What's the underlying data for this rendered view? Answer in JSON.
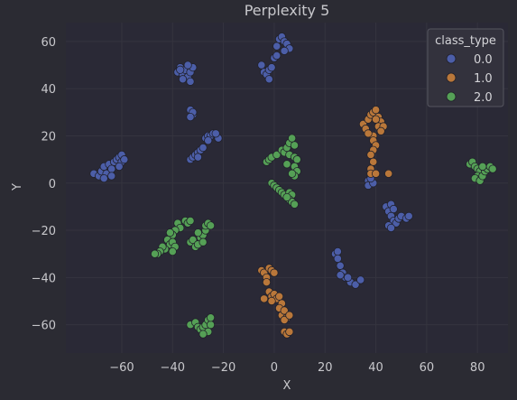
{
  "chart_data": {
    "type": "scatter",
    "title": "Perplexity 5",
    "xlabel": "X",
    "ylabel": "Y",
    "xlim": [
      -82,
      92
    ],
    "ylim": [
      -72,
      68
    ],
    "xticks": [
      -60,
      -40,
      -20,
      0,
      20,
      40,
      60,
      80
    ],
    "yticks": [
      -60,
      -40,
      -20,
      0,
      20,
      40,
      60
    ],
    "grid": true,
    "legend": {
      "title": "class_type",
      "placement": "top-right",
      "entries": [
        {
          "label": "0.0",
          "color": "#4c5ea8"
        },
        {
          "label": "1.0",
          "color": "#b9773a"
        },
        {
          "label": "2.0",
          "color": "#55a056"
        }
      ]
    },
    "series": [
      {
        "name": "0.0",
        "color": "#4c5ea8",
        "points": [
          [
            -71,
            4
          ],
          [
            -69,
            3
          ],
          [
            -68,
            5
          ],
          [
            -67,
            7
          ],
          [
            -66,
            4
          ],
          [
            -65,
            8
          ],
          [
            -64,
            6
          ],
          [
            -63,
            9
          ],
          [
            -62,
            10
          ],
          [
            -61,
            11
          ],
          [
            -60,
            9
          ],
          [
            -60,
            12
          ],
          [
            -59,
            10
          ],
          [
            -61,
            7
          ],
          [
            -64,
            3
          ],
          [
            -67,
            2
          ],
          [
            -38,
            47
          ],
          [
            -37,
            49
          ],
          [
            -36,
            46
          ],
          [
            -35,
            48
          ],
          [
            -34,
            45
          ],
          [
            -33,
            43
          ],
          [
            -33,
            47
          ],
          [
            -32,
            49
          ],
          [
            -34,
            50
          ],
          [
            -36,
            44
          ],
          [
            -37,
            48
          ],
          [
            -33,
            31
          ],
          [
            -32,
            29
          ],
          [
            -32,
            30
          ],
          [
            -33,
            28
          ],
          [
            -33,
            10
          ],
          [
            -32,
            11
          ],
          [
            -31,
            12
          ],
          [
            -30,
            13
          ],
          [
            -30,
            11
          ],
          [
            -29,
            14
          ],
          [
            -28,
            15
          ],
          [
            -27,
            19
          ],
          [
            -26,
            20
          ],
          [
            -25,
            20
          ],
          [
            -24,
            21
          ],
          [
            -22,
            19
          ],
          [
            -23,
            21
          ],
          [
            -26,
            18
          ],
          [
            -5,
            50
          ],
          [
            -4,
            47
          ],
          [
            -3,
            46
          ],
          [
            -2,
            48
          ],
          [
            -1,
            49
          ],
          [
            0,
            53
          ],
          [
            1,
            54
          ],
          [
            1,
            58
          ],
          [
            2,
            61
          ],
          [
            3,
            62
          ],
          [
            4,
            60
          ],
          [
            5,
            59
          ],
          [
            6,
            57
          ],
          [
            4,
            56
          ],
          [
            -2,
            44
          ],
          [
            24,
            -30
          ],
          [
            25,
            -29
          ],
          [
            25,
            -32
          ],
          [
            26,
            -35
          ],
          [
            27,
            -38
          ],
          [
            28,
            -40
          ],
          [
            30,
            -42
          ],
          [
            32,
            -43
          ],
          [
            34,
            -41
          ],
          [
            26,
            -39
          ],
          [
            29,
            -40
          ],
          [
            37,
            1
          ],
          [
            38,
            3
          ],
          [
            37,
            -1
          ],
          [
            39,
            0
          ],
          [
            38,
            2
          ],
          [
            44,
            -10
          ],
          [
            45,
            -12
          ],
          [
            46,
            -9
          ],
          [
            47,
            -11
          ],
          [
            46,
            -14
          ],
          [
            47,
            -16
          ],
          [
            48,
            -17
          ],
          [
            49,
            -15
          ],
          [
            50,
            -14
          ],
          [
            52,
            -15
          ],
          [
            53,
            -14
          ],
          [
            45,
            -18
          ],
          [
            46,
            -19
          ]
        ]
      },
      {
        "name": "1.0",
        "color": "#b9773a",
        "points": [
          [
            35,
            25
          ],
          [
            36,
            23
          ],
          [
            37,
            27
          ],
          [
            38,
            29
          ],
          [
            39,
            30
          ],
          [
            40,
            31
          ],
          [
            41,
            28
          ],
          [
            42,
            26
          ],
          [
            41,
            24
          ],
          [
            43,
            24
          ],
          [
            42,
            22
          ],
          [
            39,
            20
          ],
          [
            39,
            18
          ],
          [
            40,
            16
          ],
          [
            39,
            14
          ],
          [
            38,
            12
          ],
          [
            39,
            9
          ],
          [
            38,
            6
          ],
          [
            38,
            4
          ],
          [
            40,
            4
          ],
          [
            45,
            4
          ],
          [
            37,
            21
          ],
          [
            40,
            27
          ],
          [
            -5,
            -37
          ],
          [
            -4,
            -38
          ],
          [
            -3,
            -40
          ],
          [
            -2,
            -36
          ],
          [
            -1,
            -37
          ],
          [
            0,
            -38
          ],
          [
            -3,
            -42
          ],
          [
            -2,
            -46
          ],
          [
            -1,
            -48
          ],
          [
            0,
            -47
          ],
          [
            1,
            -49
          ],
          [
            2,
            -48
          ],
          [
            3,
            -51
          ],
          [
            2,
            -53
          ],
          [
            3,
            -56
          ],
          [
            4,
            -54
          ],
          [
            5,
            -57
          ],
          [
            4,
            -58
          ],
          [
            6,
            -56
          ],
          [
            4,
            -63
          ],
          [
            5,
            -64
          ],
          [
            6,
            -63
          ],
          [
            -4,
            -49
          ],
          [
            -1,
            -50
          ]
        ]
      },
      {
        "name": "2.0",
        "color": "#55a056",
        "points": [
          [
            -3,
            9
          ],
          [
            -2,
            10
          ],
          [
            -1,
            11
          ],
          [
            1,
            12
          ],
          [
            3,
            14
          ],
          [
            4,
            13
          ],
          [
            5,
            15
          ],
          [
            6,
            17
          ],
          [
            7,
            19
          ],
          [
            8,
            16
          ],
          [
            6,
            12
          ],
          [
            8,
            11
          ],
          [
            9,
            10
          ],
          [
            8,
            7
          ],
          [
            9,
            5
          ],
          [
            8,
            3
          ],
          [
            7,
            4
          ],
          [
            5,
            8
          ],
          [
            -1,
            0
          ],
          [
            0,
            -1
          ],
          [
            1,
            -2
          ],
          [
            2,
            -3
          ],
          [
            3,
            -4
          ],
          [
            4,
            -5
          ],
          [
            6,
            -4
          ],
          [
            7,
            -5
          ],
          [
            6,
            -7
          ],
          [
            7,
            -8
          ],
          [
            8,
            -9
          ],
          [
            5,
            -6
          ],
          [
            -35,
            -16
          ],
          [
            -34,
            -17
          ],
          [
            -33,
            -16
          ],
          [
            -38,
            -17
          ],
          [
            -37,
            -19
          ],
          [
            -39,
            -20
          ],
          [
            -40,
            -22
          ],
          [
            -41,
            -21
          ],
          [
            -42,
            -24
          ],
          [
            -41,
            -26
          ],
          [
            -40,
            -25
          ],
          [
            -39,
            -27
          ],
          [
            -40,
            -29
          ],
          [
            -43,
            -28
          ],
          [
            -44,
            -27
          ],
          [
            -45,
            -29
          ],
          [
            -46,
            -30
          ],
          [
            -47,
            -30
          ],
          [
            -33,
            -25
          ],
          [
            -32,
            -24
          ],
          [
            -31,
            -27
          ],
          [
            -30,
            -26
          ],
          [
            -29,
            -23
          ],
          [
            -28,
            -22
          ],
          [
            -27,
            -20
          ],
          [
            -27,
            -18
          ],
          [
            -26,
            -17
          ],
          [
            -25,
            -18
          ],
          [
            -28,
            -25
          ],
          [
            -30,
            -21
          ],
          [
            -33,
            -60
          ],
          [
            -31,
            -59
          ],
          [
            -30,
            -61
          ],
          [
            -29,
            -62
          ],
          [
            -28,
            -61
          ],
          [
            -27,
            -60
          ],
          [
            -26,
            -58
          ],
          [
            -25,
            -60
          ],
          [
            -26,
            -63
          ],
          [
            -28,
            -64
          ],
          [
            -25,
            -57
          ],
          [
            77,
            8
          ],
          [
            78,
            9
          ],
          [
            79,
            7
          ],
          [
            80,
            6
          ],
          [
            81,
            5
          ],
          [
            80,
            3
          ],
          [
            79,
            2
          ],
          [
            81,
            1
          ],
          [
            82,
            3
          ],
          [
            83,
            5
          ],
          [
            84,
            6
          ],
          [
            85,
            7
          ],
          [
            86,
            6
          ],
          [
            82,
            7
          ]
        ]
      }
    ]
  }
}
